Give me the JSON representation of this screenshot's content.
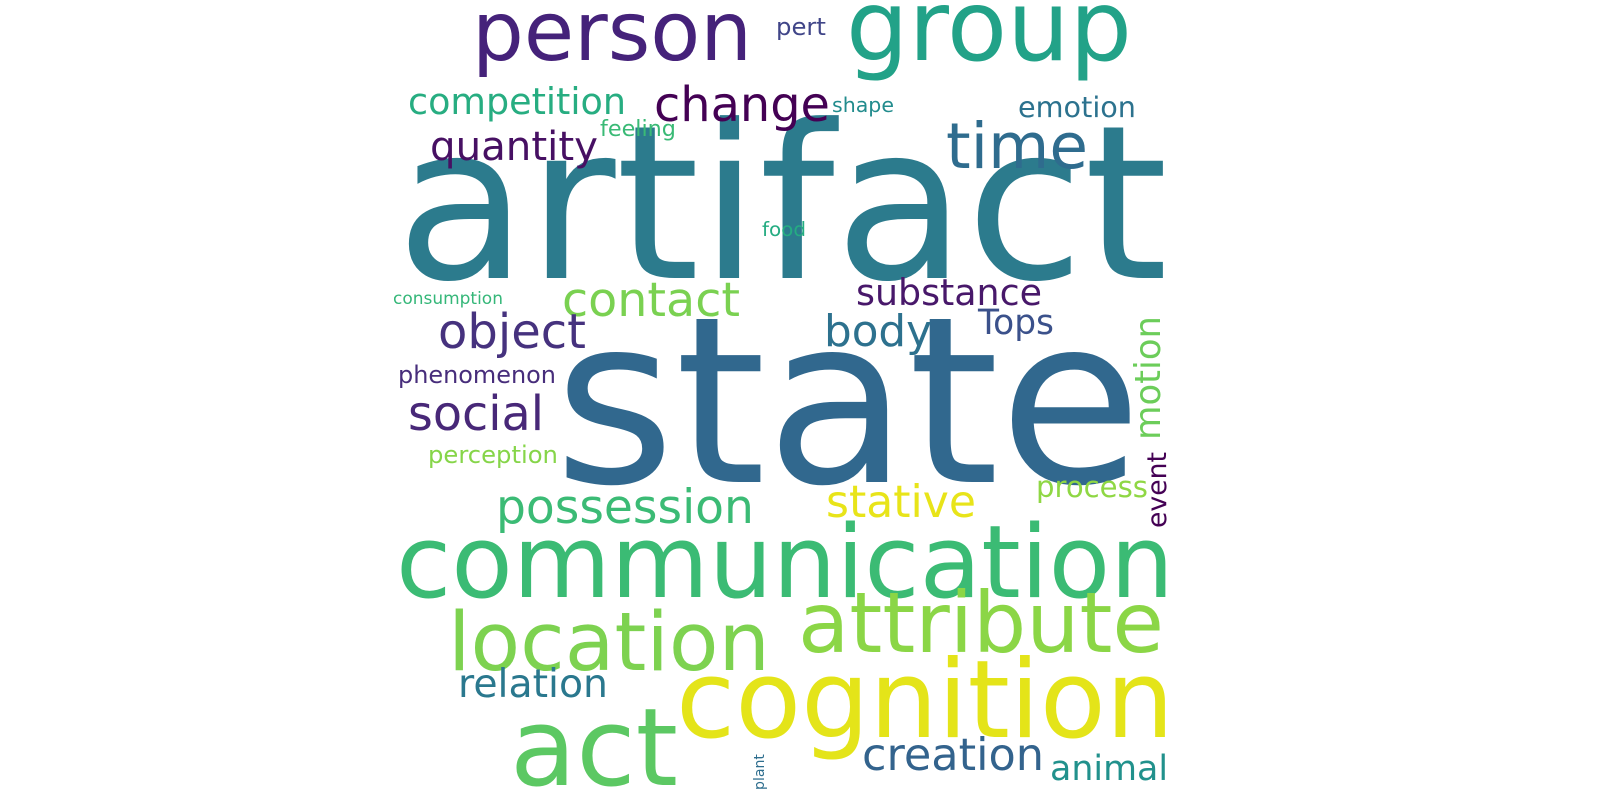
{
  "words": [
    {
      "text": "state",
      "color": "#31688e"
    },
    {
      "text": "artifact",
      "color": "#2c7b8d"
    },
    {
      "text": "communication",
      "color": "#3bbb74"
    },
    {
      "text": "cognition",
      "color": "#e4e419"
    },
    {
      "text": "group",
      "color": "#22a288"
    },
    {
      "text": "person",
      "color": "#45227a"
    },
    {
      "text": "act",
      "color": "#5cc863"
    },
    {
      "text": "location",
      "color": "#7dd250"
    },
    {
      "text": "attribute",
      "color": "#8bd646"
    },
    {
      "text": "change",
      "color": "#440154"
    },
    {
      "text": "time",
      "color": "#2f6c8e"
    },
    {
      "text": "contact",
      "color": "#7ad151"
    },
    {
      "text": "possession",
      "color": "#3bbb75"
    },
    {
      "text": "body",
      "color": "#2d718e"
    },
    {
      "text": "object",
      "color": "#46327e"
    },
    {
      "text": "social",
      "color": "#482878"
    },
    {
      "text": "creation",
      "color": "#33638d"
    },
    {
      "text": "motion",
      "color": "#6ccd5a"
    },
    {
      "text": "competition",
      "color": "#27ad81"
    },
    {
      "text": "quantity",
      "color": "#471063"
    },
    {
      "text": "substance",
      "color": "#48186a"
    },
    {
      "text": "stative",
      "color": "#e8e419"
    },
    {
      "text": "animal",
      "color": "#21918c"
    },
    {
      "text": "relation",
      "color": "#2a788e"
    },
    {
      "text": "emotion",
      "color": "#2c728e"
    },
    {
      "text": "Tops",
      "color": "#3b518b"
    },
    {
      "text": "phenomenon",
      "color": "#472d7b"
    },
    {
      "text": "process",
      "color": "#8fd744"
    },
    {
      "text": "event",
      "color": "#440154"
    },
    {
      "text": "perception",
      "color": "#86d549"
    },
    {
      "text": "shape",
      "color": "#228c8d"
    },
    {
      "text": "feeling",
      "color": "#3aba76"
    },
    {
      "text": "pert",
      "color": "#404588"
    },
    {
      "text": "food",
      "color": "#25ac82"
    },
    {
      "text": "consumption",
      "color": "#35b779"
    },
    {
      "text": "plant",
      "color": "#2e6e8e"
    }
  ]
}
